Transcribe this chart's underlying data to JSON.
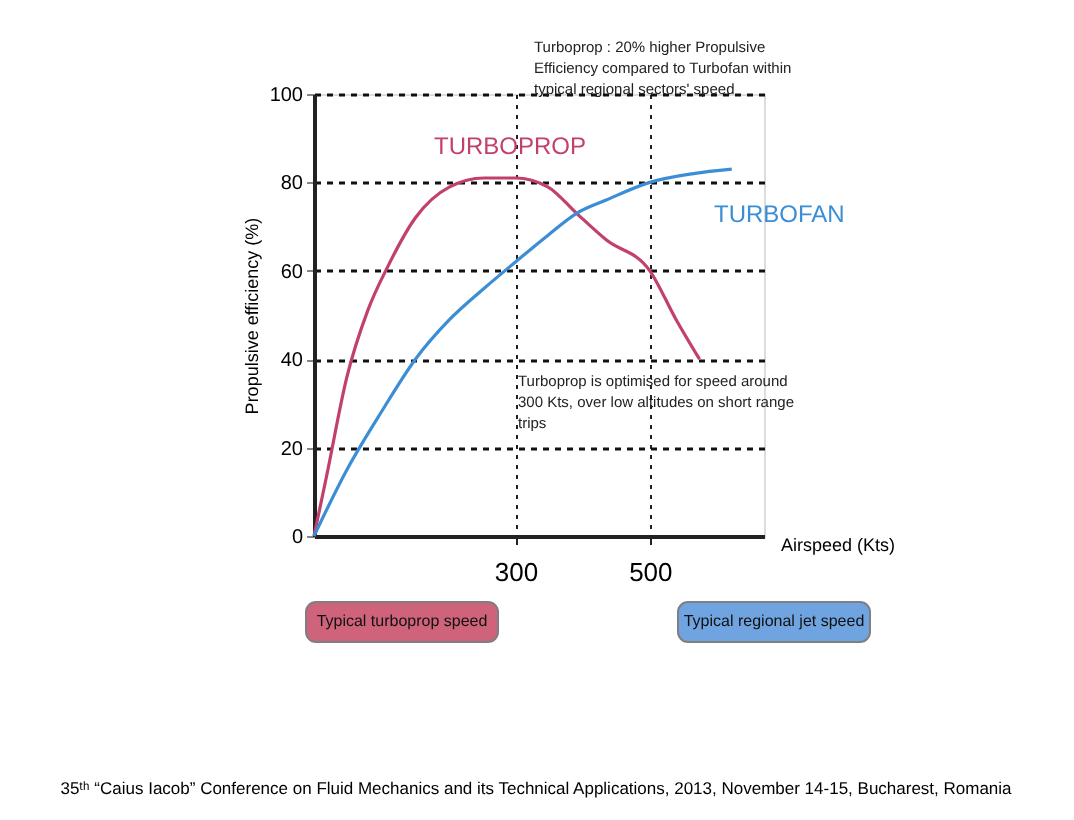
{
  "chart_data": {
    "type": "line",
    "xlabel": "Airspeed (Kts)",
    "ylabel": "Propulsive efficiency (%)",
    "xlim": [
      0,
      670
    ],
    "xticks": [
      300,
      500
    ],
    "ylim": [
      0,
      100
    ],
    "yticks": [
      0,
      20,
      40,
      60,
      80,
      100
    ],
    "grid": true,
    "line_style": "solid",
    "marker": "none",
    "series": [
      {
        "name": "TURBOPROP",
        "color": "#c2416b",
        "x": [
          0,
          18,
          49,
          80,
          110,
          151,
          202,
          253,
          300,
          348,
          391,
          435,
          500,
          539,
          574
        ],
        "values": [
          0,
          13,
          36,
          51,
          61,
          72,
          79,
          81,
          81,
          79,
          73,
          67,
          60,
          49,
          40
        ]
      },
      {
        "name": "TURBOFAN",
        "color": "#3b8ed6",
        "x": [
          0,
          49,
          100,
          151,
          202,
          253,
          300,
          348,
          391,
          435,
          500,
          565,
          622
        ],
        "values": [
          0,
          15,
          28,
          40,
          49,
          56,
          62,
          68,
          73,
          76,
          80,
          82,
          83
        ]
      }
    ],
    "annotations": [
      "Turboprop : 20% higher Propulsive\nEfficiency compared to Turbofan within\ntypical regional sectors' speed",
      "Turboprop is optimised for speed around\n300 Kts, over low altitudes on short range\ntrips",
      "Typical turboprop speed",
      "Typical regional jet speed",
      "35ᵗʰ “Caius Iacob” Conference on Fluid Mechanics and its Technical Applications, 2013, November  14-15, Bucharest, Romania"
    ]
  }
}
